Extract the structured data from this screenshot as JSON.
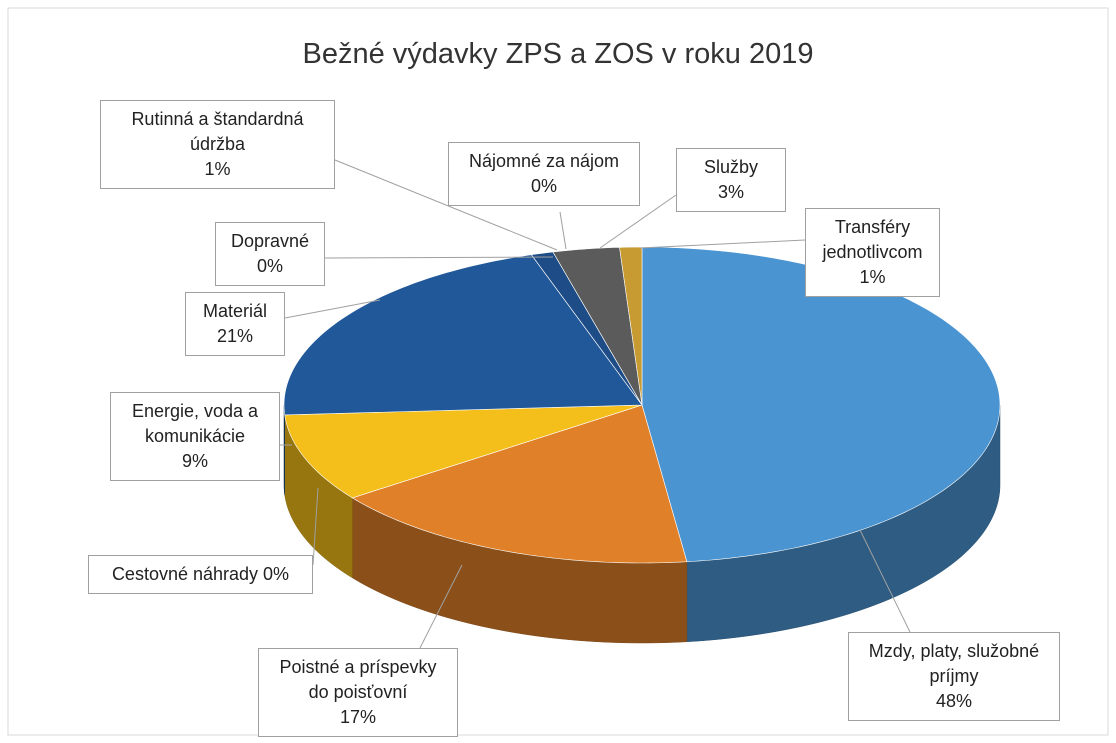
{
  "chart_data": {
    "type": "pie3d",
    "title": "Bežné výdavky ZPS a ZOS v roku 2019",
    "categories": [
      "Mzdy, platy, služobné príjmy",
      "Poistné a príspevky do poisťovní",
      "Cestovné náhrady",
      "Energie, voda a komunikácie",
      "Materiál",
      "Dopravné",
      "Rutinná a štandardná údržba",
      "Nájomné za nájom",
      "Služby",
      "Transféry jednotlivcom"
    ],
    "values": [
      48,
      17,
      0,
      9,
      21,
      0,
      1,
      0,
      3,
      1
    ],
    "value_labels": [
      "48%",
      "17%",
      "0%",
      "9%",
      "21%",
      "0%",
      "1%",
      "0%",
      "3%",
      "1%"
    ],
    "colors": [
      "#4a94d1",
      "#e0812a",
      "#a5a5a5",
      "#f4bf1a",
      "#21589a",
      "#7a9a3a",
      "#1d4c86",
      "#b53a25",
      "#5b5b5b",
      "#c89a32"
    ]
  }
}
